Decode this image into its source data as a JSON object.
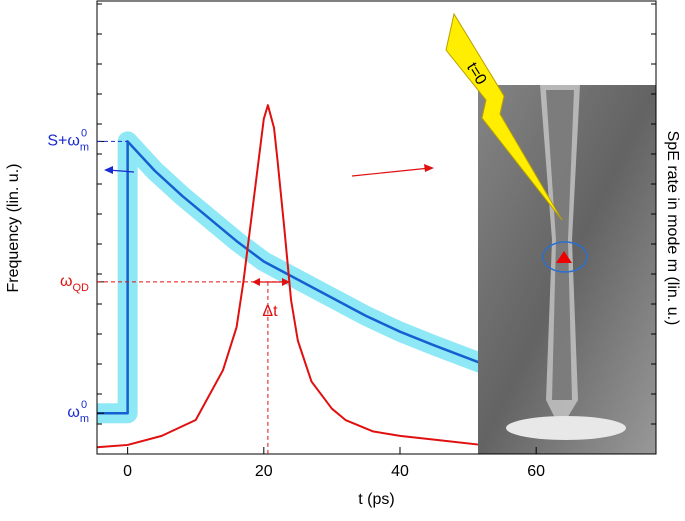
{
  "chart_data": {
    "type": "line",
    "xlabel": "t (ps)",
    "ylabel": "Frequency (lin. u.)",
    "y2label": "SpE rate in mode m (lin. u.)",
    "xlim": [
      -4.5,
      77.6
    ],
    "xticks": [
      0,
      20,
      40,
      60
    ],
    "ylim": [
      0,
      1
    ],
    "y2lim": [
      0,
      1
    ],
    "yticks": [
      {
        "value": 0.69,
        "label": "S+ω",
        "sub": "m",
        "sup": "0"
      },
      {
        "value": 0.38,
        "label": "ω",
        "sub": "QD"
      },
      {
        "value": 0.09,
        "label": "ω",
        "sub": "m",
        "sup": "0"
      }
    ],
    "series": [
      {
        "color": "#1560d0",
        "band_color": "#8ee8f5",
        "x": [
          -4.5,
          0,
          0,
          4,
          8,
          12,
          16,
          20,
          25,
          30,
          35,
          40,
          45,
          52
        ],
        "values": [
          0.09,
          0.09,
          0.69,
          0.625,
          0.57,
          0.52,
          0.47,
          0.425,
          0.385,
          0.345,
          0.305,
          0.27,
          0.24,
          0.2
        ]
      },
      {
        "color": "#e01010",
        "axis": "y2",
        "x": [
          -4.5,
          0,
          5,
          10,
          14,
          16,
          17,
          18,
          19,
          20,
          20.6,
          21.5,
          22,
          23,
          24,
          25,
          27,
          30,
          32,
          36,
          40,
          46,
          52
        ],
        "values": [
          0.015,
          0.02,
          0.04,
          0.075,
          0.185,
          0.28,
          0.38,
          0.5,
          0.62,
          0.74,
          0.77,
          0.72,
          0.65,
          0.5,
          0.34,
          0.25,
          0.16,
          0.1,
          0.075,
          0.05,
          0.04,
          0.03,
          0.02
        ]
      }
    ],
    "annotations": {
      "delta_t": "Δt",
      "t0": "t=0"
    }
  }
}
